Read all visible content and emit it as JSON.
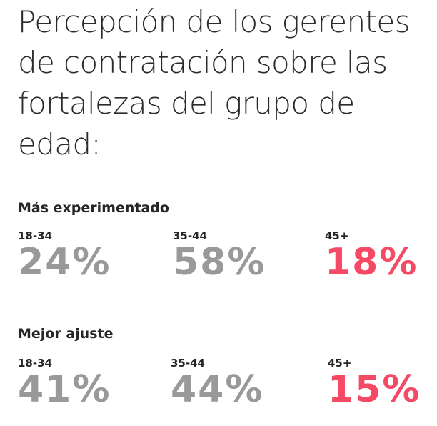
{
  "colors": {
    "title_text": "#2b2b2b",
    "label_text": "#262626",
    "value_default": "#999999",
    "value_highlight": "#f44a66"
  },
  "chart_data": {
    "type": "table",
    "title": "Percepción de los gerentes de contratación sobre las fortalezas del grupo de edad:",
    "groups": [
      {
        "name": "Más experimentado",
        "items": [
          {
            "label": "18-34",
            "display": "24%",
            "value": 24,
            "highlight": false
          },
          {
            "label": "35-44",
            "display": "58%",
            "value": 58,
            "highlight": false
          },
          {
            "label": "45+",
            "display": "18%",
            "value": 18,
            "highlight": true
          }
        ]
      },
      {
        "name": "Mejor ajuste",
        "items": [
          {
            "label": "18-34",
            "display": "41%",
            "value": 41,
            "highlight": false
          },
          {
            "label": "35-44",
            "display": "44%",
            "value": 44,
            "highlight": false
          },
          {
            "label": "45+",
            "display": "15%",
            "value": 15,
            "highlight": true
          }
        ]
      }
    ]
  }
}
